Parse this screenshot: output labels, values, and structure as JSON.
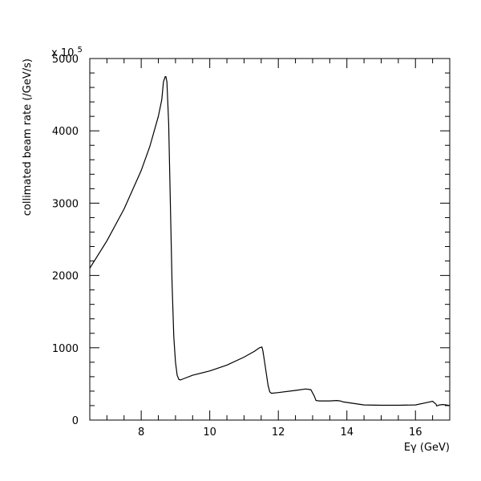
{
  "chart_data": {
    "type": "line",
    "title": "",
    "xlabel": "Eγ (GeV)",
    "ylabel": "collimated beam rate (/GeV/s)",
    "multiplier": "x 10",
    "multiplier_exp": "5",
    "xlim": [
      6.5,
      17.0
    ],
    "ylim": [
      0,
      5000
    ],
    "x_ticks_major": [
      8,
      10,
      12,
      14,
      16
    ],
    "x_tick_labels": [
      "8",
      "10",
      "12",
      "14",
      "16"
    ],
    "y_ticks_major": [
      0,
      1000,
      2000,
      3000,
      4000,
      5000
    ],
    "y_tick_labels": [
      "0",
      "1000",
      "2000",
      "3000",
      "4000",
      "5000"
    ],
    "grid": false,
    "legend": "none",
    "series": [
      {
        "x": [
          6.5,
          7.0,
          7.5,
          8.0,
          8.25,
          8.5,
          8.6,
          8.65,
          8.7,
          8.72,
          8.75,
          8.8,
          8.85,
          8.9,
          8.95,
          9.0,
          9.05,
          9.1,
          9.15,
          9.2,
          9.5,
          10.0,
          10.5,
          11.0,
          11.3,
          11.45,
          11.52,
          11.55,
          11.6,
          11.7,
          11.75,
          11.8,
          12.0,
          12.5,
          12.8,
          12.95,
          13.05,
          13.1,
          13.2,
          13.5,
          13.7,
          13.8,
          13.9,
          14.5,
          15.0,
          15.5,
          16.0,
          16.3,
          16.5,
          16.6,
          16.62,
          16.7,
          16.8,
          16.9,
          17.0
        ],
        "y": [
          2100,
          2480,
          2920,
          3450,
          3780,
          4200,
          4430,
          4680,
          4750,
          4750,
          4680,
          4100,
          3000,
          1900,
          1150,
          800,
          620,
          560,
          555,
          565,
          620,
          680,
          760,
          870,
          950,
          1000,
          1010,
          960,
          800,
          480,
          390,
          370,
          380,
          410,
          430,
          420,
          330,
          270,
          265,
          265,
          270,
          265,
          250,
          210,
          205,
          205,
          210,
          240,
          260,
          220,
          195,
          210,
          215,
          210,
          200
        ]
      }
    ]
  }
}
